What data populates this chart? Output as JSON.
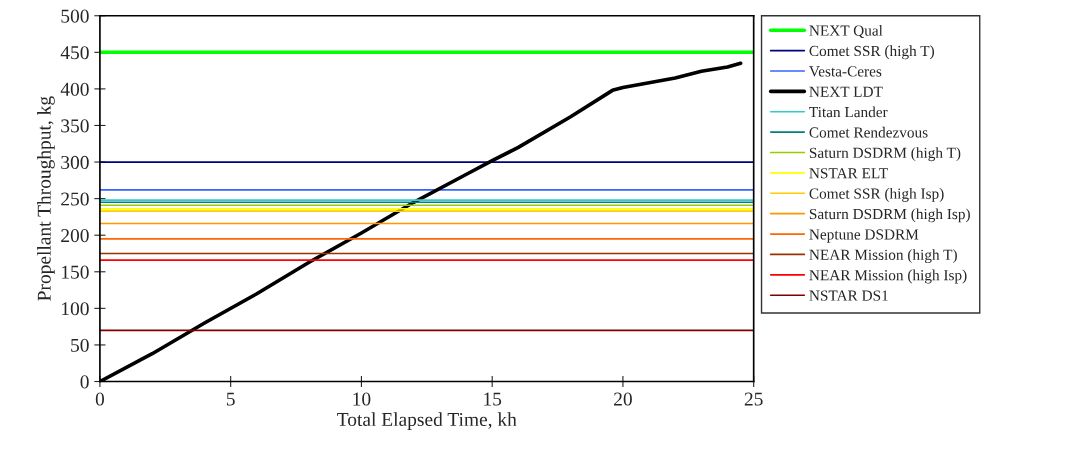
{
  "chart_data": {
    "type": "line",
    "xlabel": "Total Elapsed Time, kh",
    "ylabel": "Propellant Throughput, kg",
    "xlim": [
      0,
      25
    ],
    "xticks": [
      0,
      5,
      10,
      15,
      20,
      25
    ],
    "ylim": [
      0,
      500
    ],
    "yticks": [
      0,
      50,
      100,
      150,
      200,
      250,
      300,
      350,
      400,
      450,
      500
    ],
    "grid": false,
    "legend": "right",
    "marker": "none",
    "line_style": "solid",
    "series": [
      {
        "name": "NEXT Qual",
        "color": "#00ff00",
        "x": [
          0,
          25
        ],
        "values": [
          450,
          450
        ]
      },
      {
        "name": "Comet SSR (high T)",
        "color": "#000080",
        "x": [
          0,
          25
        ],
        "values": [
          300,
          300
        ]
      },
      {
        "name": "Vesta-Ceres",
        "color": "#3366ff",
        "x": [
          0,
          25
        ],
        "values": [
          262,
          262
        ]
      },
      {
        "name": "NEXT LDT",
        "color": "#000000",
        "x": [
          0,
          2,
          4,
          6,
          8,
          10,
          12,
          14,
          15,
          16,
          18,
          19.6,
          20,
          22,
          23,
          24,
          24.5
        ],
        "values": [
          0,
          38,
          80,
          120,
          163,
          203,
          245,
          283,
          302,
          320,
          362,
          398,
          402,
          415,
          424,
          430,
          435
        ]
      },
      {
        "name": "Titan Lander",
        "color": "#33cccc",
        "x": [
          0,
          25
        ],
        "values": [
          248,
          248
        ]
      },
      {
        "name": "Comet Rendezvous",
        "color": "#008080",
        "x": [
          0,
          25
        ],
        "values": [
          245,
          245
        ]
      },
      {
        "name": "Saturn DSDRM (high T)",
        "color": "#99cc00",
        "x": [
          0,
          25
        ],
        "values": [
          241,
          241
        ]
      },
      {
        "name": "NSTAR ELT",
        "color": "#ffff00",
        "x": [
          0,
          25
        ],
        "values": [
          236,
          236
        ]
      },
      {
        "name": "Comet SSR (high Isp)",
        "color": "#ffcc00",
        "x": [
          0,
          25
        ],
        "values": [
          233,
          233
        ]
      },
      {
        "name": "Saturn DSDRM (high Isp)",
        "color": "#ff9900",
        "x": [
          0,
          25
        ],
        "values": [
          216,
          216
        ]
      },
      {
        "name": "Neptune DSDRM",
        "color": "#ff6600",
        "x": [
          0,
          25
        ],
        "values": [
          195,
          195
        ]
      },
      {
        "name": "NEAR Mission (high T)",
        "color": "#993300",
        "x": [
          0,
          25
        ],
        "values": [
          175,
          175
        ]
      },
      {
        "name": "NEAR Mission (high Isp)",
        "color": "#ff0000",
        "x": [
          0,
          25
        ],
        "values": [
          166,
          166
        ]
      },
      {
        "name": "NSTAR DS1",
        "color": "#800000",
        "x": [
          0,
          25
        ],
        "values": [
          70,
          70
        ]
      }
    ]
  }
}
